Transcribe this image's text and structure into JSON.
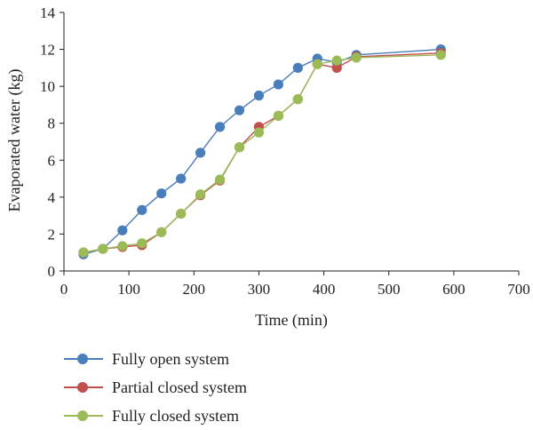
{
  "chart_data": {
    "type": "line",
    "title": "",
    "xlabel": "Time (min)",
    "ylabel": "Evaporated water (kg)",
    "xlim": [
      0,
      700
    ],
    "ylim": [
      0,
      14
    ],
    "xticks": [
      0,
      100,
      200,
      300,
      400,
      500,
      600,
      700
    ],
    "yticks": [
      0,
      2,
      4,
      6,
      8,
      10,
      12,
      14
    ],
    "grid": false,
    "legend_position": "bottom-left",
    "series": [
      {
        "name": "Fully open system",
        "color": "#4a7ebb",
        "x": [
          30,
          60,
          90,
          120,
          150,
          180,
          210,
          240,
          270,
          300,
          330,
          360,
          390,
          420,
          450,
          580
        ],
        "y": [
          0.9,
          1.2,
          2.2,
          3.3,
          4.2,
          5.0,
          6.4,
          7.8,
          8.7,
          9.5,
          10.1,
          11.0,
          11.5,
          11.3,
          11.7,
          12.0
        ]
      },
      {
        "name": "Partial closed system",
        "color": "#c0504d",
        "x": [
          30,
          60,
          90,
          120,
          150,
          180,
          210,
          240,
          270,
          300,
          330,
          360,
          390,
          420,
          450,
          580
        ],
        "y": [
          1.0,
          1.2,
          1.3,
          1.4,
          2.1,
          3.1,
          4.1,
          4.9,
          6.7,
          7.8,
          8.4,
          9.3,
          11.2,
          11.0,
          11.6,
          11.8
        ]
      },
      {
        "name": "Fully closed system",
        "color": "#9bbb59",
        "x": [
          30,
          60,
          90,
          120,
          150,
          180,
          210,
          240,
          270,
          300,
          330,
          360,
          390,
          420,
          450,
          580
        ],
        "y": [
          1.0,
          1.2,
          1.35,
          1.5,
          2.1,
          3.1,
          4.15,
          4.95,
          6.7,
          7.5,
          8.4,
          9.3,
          11.2,
          11.4,
          11.55,
          11.7
        ]
      }
    ]
  }
}
